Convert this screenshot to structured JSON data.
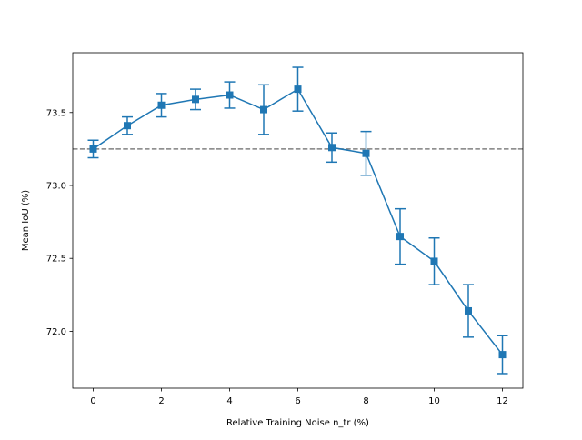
{
  "chart_data": {
    "type": "line",
    "title": "",
    "xlabel": "Relative Training Noise n_tr (%)",
    "ylabel": "Mean IoU (%)",
    "xlim": [
      -0.6,
      12.6
    ],
    "ylim": [
      71.61,
      73.91
    ],
    "xticks": [
      0,
      2,
      4,
      6,
      8,
      10,
      12
    ],
    "yticks": [
      72.0,
      72.5,
      73.0,
      73.5
    ],
    "ytick_labels": [
      "72.0",
      "72.5",
      "73.0",
      "73.5"
    ],
    "grid": false,
    "series": [
      {
        "x": [
          0,
          1,
          2,
          3,
          4,
          5,
          6,
          7,
          8,
          9,
          10,
          11,
          12
        ],
        "y": [
          73.25,
          73.41,
          73.55,
          73.59,
          73.62,
          73.52,
          73.66,
          73.26,
          73.22,
          72.65,
          72.48,
          72.14,
          71.84
        ],
        "yerr": [
          0.06,
          0.06,
          0.08,
          0.07,
          0.09,
          0.17,
          0.15,
          0.1,
          0.15,
          0.19,
          0.16,
          0.18,
          0.13
        ],
        "color": "#1f77b4",
        "marker": "square"
      }
    ],
    "reference_line": {
      "y": 73.25,
      "style": "dashed",
      "color": "#808080"
    }
  }
}
